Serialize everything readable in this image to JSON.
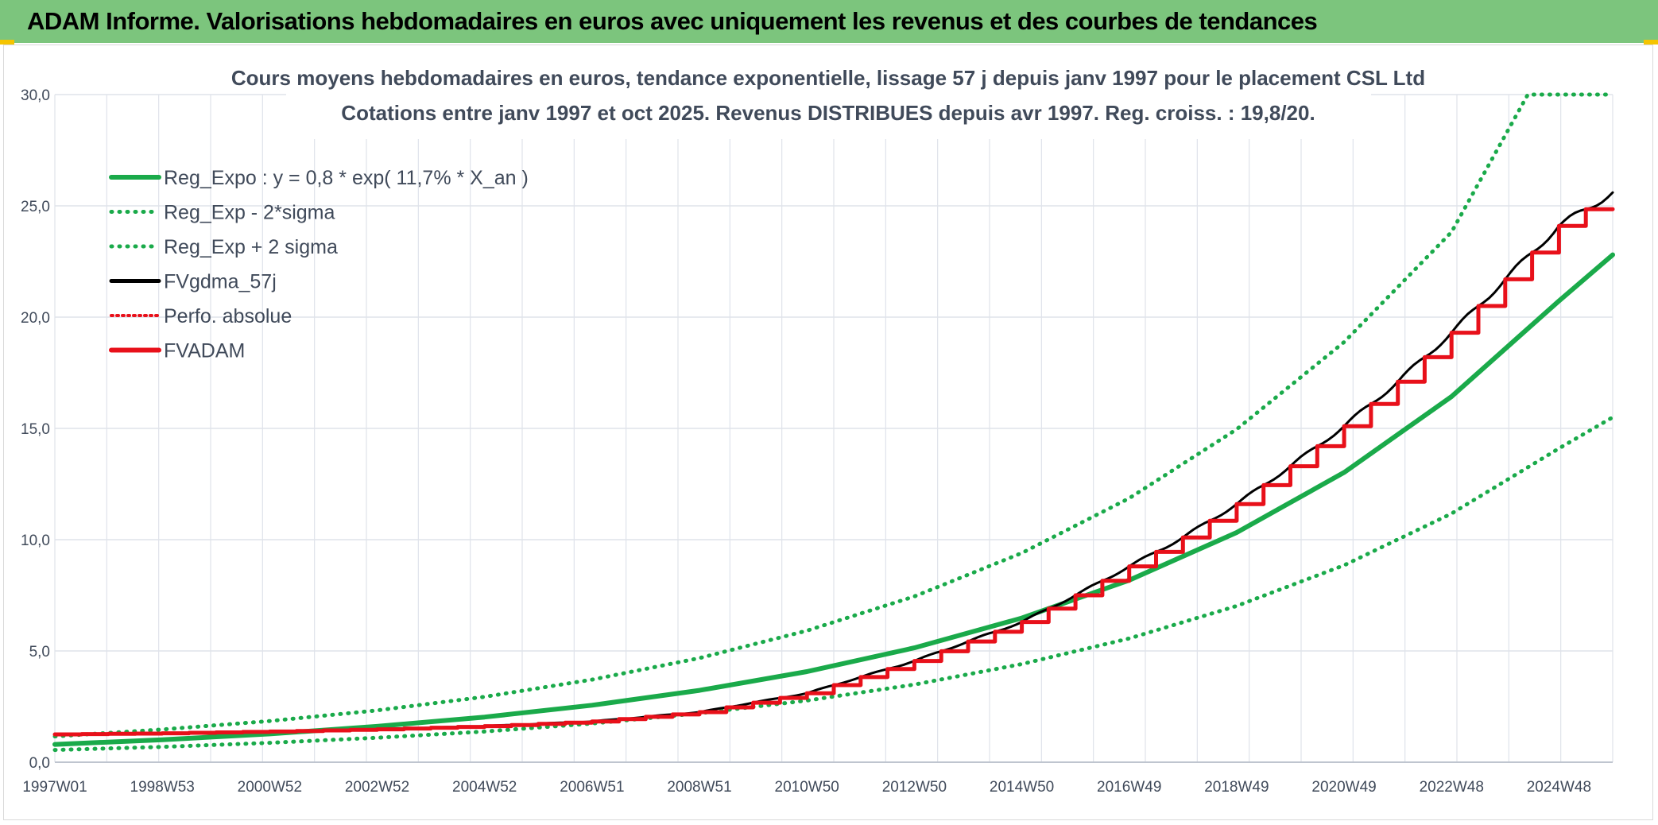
{
  "header": {
    "title": "ADAM Informe. Valorisations hebdomadaires en euros avec uniquement les revenus et des courbes de tendances"
  },
  "colors": {
    "header_bg": "#7cc57d",
    "green": "#1aaa4a",
    "black": "#000000",
    "red": "#e8101a",
    "grid": "#dfe3ea"
  },
  "chart_data": {
    "type": "line",
    "title_line1": "Cours moyens hebdomadaires en euros, tendance exponentielle, lissage 57 j depuis janv 1997 pour le placement CSL Ltd",
    "title_line2": "Cotations entre janv 1997 et oct 2025. Revenus DISTRIBUES depuis avr 1997. Reg. croiss. : 19,8/20.",
    "xlabel": "",
    "ylabel": "",
    "ylim": [
      0,
      30
    ],
    "xlim": [
      1997.0,
      2026.0
    ],
    "y_ticks": [
      "0,0",
      "5,0",
      "10,0",
      "15,0",
      "20,0",
      "25,0",
      "30,0"
    ],
    "x_tick_labels": [
      "1997W01",
      "1998W53",
      "2000W52",
      "2002W52",
      "2004W52",
      "2006W51",
      "2008W51",
      "2010W50",
      "2012W50",
      "2014W50",
      "2016W49",
      "2018W49",
      "2020W49",
      "2022W48",
      "2024W48"
    ],
    "legend": [
      {
        "label": "Reg_Expo : y = 0,8 * exp( 11,7% *  X_an )",
        "style": "solid-green"
      },
      {
        "label": "Reg_Exp - 2*sigma",
        "style": "dotted-green"
      },
      {
        "label": "Reg_Exp + 2 sigma",
        "style": "dotted-green"
      },
      {
        "label": "FVgdma_57j",
        "style": "solid-black"
      },
      {
        "label": "Perfo. absolue",
        "style": "dotted-red"
      },
      {
        "label": "FVADAM",
        "style": "solid-red"
      }
    ],
    "series": [
      {
        "name": "Reg_Expo",
        "x": [
          1997,
          1999,
          2001,
          2003,
          2005,
          2007,
          2009,
          2011,
          2013,
          2015,
          2017,
          2019,
          2021,
          2023,
          2025,
          2026
        ],
        "values": [
          0.8,
          1.01,
          1.27,
          1.61,
          2.03,
          2.56,
          3.23,
          4.07,
          5.14,
          6.48,
          8.18,
          10.32,
          13.02,
          16.43,
          20.73,
          22.8
        ]
      },
      {
        "name": "Reg_Exp - 2*sigma",
        "x": [
          1997,
          1999,
          2001,
          2003,
          2005,
          2007,
          2009,
          2011,
          2013,
          2015,
          2017,
          2019,
          2021,
          2023,
          2025,
          2026
        ],
        "values": [
          0.55,
          0.69,
          0.87,
          1.1,
          1.38,
          1.74,
          2.2,
          2.77,
          3.49,
          4.41,
          5.56,
          7.02,
          8.85,
          11.17,
          14.1,
          15.5
        ]
      },
      {
        "name": "Reg_Exp + 2 sigma",
        "x": [
          1997,
          1999,
          2001,
          2003,
          2005,
          2007,
          2009,
          2011,
          2013,
          2015,
          2017,
          2019,
          2021,
          2023,
          2024.42,
          2025,
          2026
        ],
        "values": [
          1.16,
          1.47,
          1.85,
          2.33,
          2.94,
          3.71,
          4.68,
          5.91,
          7.45,
          9.4,
          11.86,
          14.96,
          18.88,
          23.82,
          30.0,
          30.0,
          30.0
        ]
      },
      {
        "name": "FVgdma_57j",
        "x": [
          1997,
          1999,
          2001,
          2003,
          2005,
          2007,
          2009,
          2011,
          2013,
          2015,
          2016,
          2017,
          2018,
          2019,
          2020,
          2021,
          2022,
          2023,
          2024,
          2025,
          2026
        ],
        "values": [
          1.25,
          1.3,
          1.38,
          1.48,
          1.62,
          1.83,
          2.25,
          3.1,
          4.55,
          6.3,
          7.5,
          8.8,
          10.1,
          11.6,
          13.3,
          15.1,
          17.1,
          19.3,
          21.7,
          24.1,
          25.6
        ]
      },
      {
        "name": "Perfo. absolue",
        "x": [
          1997,
          1999,
          2001,
          2003,
          2005,
          2007,
          2009,
          2011,
          2013,
          2015,
          2016,
          2017,
          2018,
          2019,
          2020,
          2021,
          2022,
          2023,
          2024,
          2025,
          2026
        ],
        "values": [
          1.25,
          1.3,
          1.38,
          1.48,
          1.62,
          1.83,
          2.25,
          3.1,
          4.55,
          6.3,
          7.5,
          8.8,
          10.1,
          11.6,
          13.3,
          15.1,
          17.1,
          19.3,
          21.7,
          24.1,
          25.6
        ]
      },
      {
        "name": "FVADAM",
        "x": [
          1997,
          1999,
          2001,
          2003,
          2005,
          2007,
          2009,
          2011,
          2013,
          2015,
          2016,
          2017,
          2018,
          2019,
          2020,
          2021,
          2022,
          2023,
          2024,
          2025,
          2026
        ],
        "values": [
          1.25,
          1.3,
          1.38,
          1.48,
          1.62,
          1.83,
          2.25,
          3.1,
          4.55,
          6.3,
          7.5,
          8.8,
          10.1,
          11.6,
          13.3,
          15.1,
          17.1,
          19.3,
          21.7,
          24.1,
          25.6
        ]
      }
    ]
  }
}
